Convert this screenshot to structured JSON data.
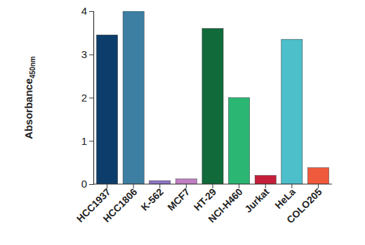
{
  "chart_data": {
    "type": "bar",
    "y_label": "Absorbance450nm",
    "categories": [
      "HCC1937",
      "HCC1806",
      "K-562",
      "MCF7",
      "HT-29",
      "NCI-H460",
      "Jurkat",
      "HeLa",
      "COLO205"
    ],
    "values": [
      3.45,
      4.0,
      0.08,
      0.12,
      3.6,
      2.0,
      0.2,
      3.35,
      0.38
    ],
    "colors": [
      "#0d3d6b",
      "#3d7fa3",
      "#8f74c4",
      "#c17fc3",
      "#106a3a",
      "#2bb673",
      "#c41e3a",
      "#4cbfca",
      "#f05a3c"
    ],
    "ylim": [
      0,
      4
    ],
    "yticks": [
      0,
      1,
      2,
      3,
      4
    ],
    "grid": false
  }
}
